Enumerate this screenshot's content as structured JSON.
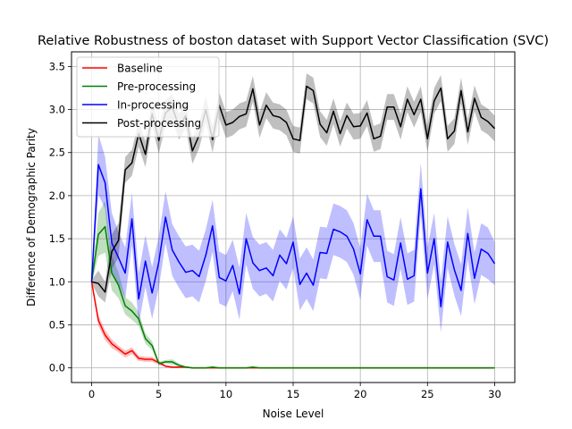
{
  "chart_data": {
    "type": "line",
    "title": "Relative Robustness of boston dataset with Support Vector Classification (SVC)",
    "xlabel": "Noise Level",
    "ylabel": "Difference of Demographic Parity",
    "xlim": [
      -1.5,
      31.5
    ],
    "ylim": [
      -0.17,
      3.67
    ],
    "xticks": [
      0,
      5,
      10,
      15,
      20,
      25,
      30
    ],
    "yticks": [
      0.0,
      0.5,
      1.0,
      1.5,
      2.0,
      2.5,
      3.0,
      3.5
    ],
    "xtick_labels": [
      "0",
      "5",
      "10",
      "15",
      "20",
      "25",
      "30"
    ],
    "ytick_labels": [
      "0.0",
      "0.5",
      "1.0",
      "1.5",
      "2.0",
      "2.5",
      "3.0",
      "3.5"
    ],
    "grid": true,
    "legend_position": "top-left",
    "x": [
      0,
      0.5,
      1,
      1.5,
      2,
      2.5,
      3,
      3.5,
      4,
      4.5,
      5,
      5.5,
      6,
      6.5,
      7,
      7.5,
      8,
      8.5,
      9,
      9.5,
      10,
      10.5,
      11,
      11.5,
      12,
      12.5,
      13,
      13.5,
      14,
      14.5,
      15,
      15.5,
      16,
      16.5,
      17,
      17.5,
      18,
      18.5,
      19,
      19.5,
      20,
      20.5,
      21,
      21.5,
      22,
      22.5,
      23,
      23.5,
      24,
      24.5,
      25,
      25.5,
      26,
      26.5,
      27,
      27.5,
      28,
      28.5,
      29,
      29.5,
      30
    ],
    "series": [
      {
        "name": "Baseline",
        "color": "#ff0000",
        "values": [
          1.0,
          0.55,
          0.38,
          0.28,
          0.22,
          0.16,
          0.2,
          0.11,
          0.1,
          0.1,
          0.06,
          0.02,
          0.01,
          0.01,
          0.01,
          0.0,
          0.0,
          0.0,
          0.0,
          0.0,
          0.0,
          0.0,
          0.0,
          0.0,
          0.0,
          0.0,
          0.0,
          0.0,
          0.0,
          0.0,
          0.0,
          0.0,
          0.0,
          0.0,
          0.0,
          0.0,
          0.0,
          0.0,
          0.0,
          0.0,
          0.0,
          0.0,
          0.0,
          0.0,
          0.0,
          0.0,
          0.0,
          0.0,
          0.0,
          0.0,
          0.0,
          0.0,
          0.0,
          0.0,
          0.0,
          0.0,
          0.0,
          0.0,
          0.0,
          0.0,
          0.0
        ],
        "band": [
          0.04,
          0.06,
          0.06,
          0.05,
          0.04,
          0.04,
          0.04,
          0.03,
          0.03,
          0.03,
          0.02,
          0.01,
          0.01,
          0.0,
          0.0,
          0.0,
          0.0,
          0.0,
          0.0,
          0.0,
          0.0,
          0.0,
          0.0,
          0.0,
          0.0,
          0.0,
          0.0,
          0.0,
          0.0,
          0.0,
          0.0,
          0.0,
          0.0,
          0.0,
          0.0,
          0.0,
          0.0,
          0.0,
          0.0,
          0.0,
          0.0,
          0.0,
          0.0,
          0.0,
          0.0,
          0.0,
          0.0,
          0.0,
          0.0,
          0.0,
          0.0,
          0.0,
          0.0,
          0.0,
          0.0,
          0.0,
          0.0,
          0.0,
          0.0,
          0.0,
          0.0
        ]
      },
      {
        "name": "Pre-processing",
        "color": "#008000",
        "values": [
          1.0,
          1.55,
          1.64,
          1.1,
          0.96,
          0.72,
          0.66,
          0.57,
          0.34,
          0.26,
          0.05,
          0.07,
          0.07,
          0.03,
          0.01,
          0.0,
          0.0,
          0.0,
          0.01,
          0.0,
          0.0,
          0.0,
          0.0,
          0.0,
          0.01,
          0.0,
          0.0,
          0.0,
          0.0,
          0.0,
          0.0,
          0.0,
          0.0,
          0.0,
          0.0,
          0.0,
          0.0,
          0.0,
          0.0,
          0.0,
          0.0,
          0.0,
          0.0,
          0.0,
          0.0,
          0.0,
          0.0,
          0.0,
          0.0,
          0.0,
          0.0,
          0.0,
          0.0,
          0.0,
          0.0,
          0.0,
          0.0,
          0.0,
          0.0,
          0.0,
          0.0
        ],
        "band": [
          0.02,
          0.25,
          0.3,
          0.2,
          0.15,
          0.1,
          0.1,
          0.08,
          0.06,
          0.05,
          0.02,
          0.02,
          0.03,
          0.02,
          0.01,
          0.0,
          0.0,
          0.0,
          0.01,
          0.0,
          0.0,
          0.0,
          0.0,
          0.0,
          0.01,
          0.0,
          0.0,
          0.0,
          0.0,
          0.0,
          0.0,
          0.0,
          0.0,
          0.0,
          0.0,
          0.0,
          0.0,
          0.0,
          0.0,
          0.0,
          0.0,
          0.0,
          0.0,
          0.0,
          0.0,
          0.0,
          0.0,
          0.0,
          0.0,
          0.0,
          0.0,
          0.0,
          0.0,
          0.0,
          0.0,
          0.0,
          0.0,
          0.0,
          0.0,
          0.0,
          0.0
        ]
      },
      {
        "name": "In-processing",
        "color": "#0000ff",
        "values": [
          1.0,
          2.36,
          2.15,
          1.45,
          1.28,
          1.1,
          1.73,
          0.8,
          1.24,
          0.87,
          1.23,
          1.75,
          1.37,
          1.23,
          1.11,
          1.13,
          1.06,
          1.31,
          1.65,
          1.05,
          1.01,
          1.19,
          0.86,
          1.5,
          1.22,
          1.13,
          1.16,
          1.07,
          1.31,
          1.21,
          1.46,
          0.97,
          1.1,
          0.96,
          1.34,
          1.33,
          1.61,
          1.58,
          1.53,
          1.38,
          1.09,
          1.72,
          1.53,
          1.53,
          1.06,
          1.02,
          1.45,
          1.03,
          1.07,
          2.08,
          1.1,
          1.5,
          0.71,
          1.46,
          1.14,
          0.9,
          1.56,
          1.04,
          1.38,
          1.33,
          1.21
        ],
        "band": [
          0.02,
          0.35,
          0.3,
          0.35,
          0.3,
          0.3,
          0.3,
          0.3,
          0.3,
          0.3,
          0.3,
          0.3,
          0.3,
          0.3,
          0.3,
          0.3,
          0.3,
          0.3,
          0.3,
          0.3,
          0.3,
          0.3,
          0.3,
          0.3,
          0.3,
          0.3,
          0.3,
          0.3,
          0.3,
          0.3,
          0.3,
          0.3,
          0.3,
          0.3,
          0.3,
          0.3,
          0.3,
          0.3,
          0.3,
          0.3,
          0.3,
          0.3,
          0.3,
          0.3,
          0.3,
          0.3,
          0.3,
          0.3,
          0.3,
          0.3,
          0.3,
          0.3,
          0.3,
          0.3,
          0.3,
          0.3,
          0.3,
          0.3,
          0.3,
          0.3,
          0.25
        ]
      },
      {
        "name": "Post-processing",
        "color": "#000000",
        "values": [
          1.0,
          0.98,
          0.88,
          1.35,
          1.48,
          2.3,
          2.38,
          2.72,
          2.48,
          2.95,
          2.64,
          2.96,
          3.03,
          2.8,
          2.93,
          2.52,
          2.7,
          3.0,
          2.65,
          3.05,
          2.82,
          2.85,
          2.92,
          2.95,
          3.24,
          2.82,
          3.05,
          2.93,
          2.91,
          2.85,
          2.66,
          2.64,
          3.27,
          3.22,
          2.83,
          2.73,
          2.98,
          2.72,
          2.93,
          2.8,
          2.81,
          2.96,
          2.66,
          2.69,
          3.03,
          3.03,
          2.8,
          3.12,
          2.94,
          3.12,
          2.66,
          3.1,
          3.25,
          2.66,
          2.75,
          3.22,
          2.74,
          3.13,
          2.91,
          2.86,
          2.78
        ],
        "band": [
          0.02,
          0.15,
          0.12,
          0.2,
          0.2,
          0.15,
          0.15,
          0.15,
          0.15,
          0.15,
          0.15,
          0.15,
          0.15,
          0.15,
          0.15,
          0.15,
          0.15,
          0.15,
          0.15,
          0.15,
          0.15,
          0.15,
          0.15,
          0.15,
          0.15,
          0.15,
          0.15,
          0.15,
          0.15,
          0.15,
          0.15,
          0.15,
          0.15,
          0.15,
          0.15,
          0.15,
          0.15,
          0.15,
          0.15,
          0.15,
          0.15,
          0.15,
          0.15,
          0.15,
          0.15,
          0.15,
          0.15,
          0.15,
          0.15,
          0.15,
          0.15,
          0.15,
          0.15,
          0.15,
          0.15,
          0.15,
          0.15,
          0.15,
          0.15,
          0.15,
          0.15
        ]
      }
    ]
  }
}
